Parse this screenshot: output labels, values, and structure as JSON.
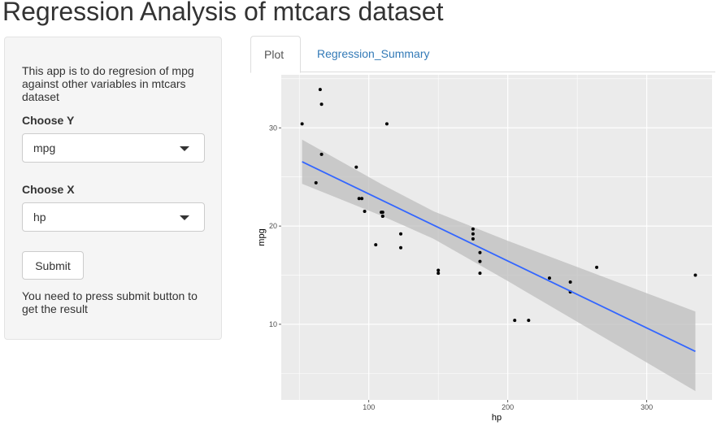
{
  "header": {
    "title": "Regression Analysis of mtcars dataset"
  },
  "sidebar": {
    "intro": "This app is to do regresion of mpg against other variables in mtcars dataset",
    "y_label": "Choose Y",
    "y_value": "mpg",
    "x_label": "Choose X",
    "x_value": "hp",
    "submit_label": "Submit",
    "note": "You need to press submit button to get the result"
  },
  "tabs": [
    {
      "label": "Plot",
      "active": true
    },
    {
      "label": "Regression_Summary",
      "active": false
    }
  ],
  "colors": {
    "panel": "#ebebeb",
    "grid": "#ffffff",
    "line": "#3366ff",
    "band": "#bdbdbd",
    "link": "#337ab7"
  },
  "chart_data": {
    "type": "scatter",
    "xlabel": "hp",
    "ylabel": "mpg",
    "xlim": [
      37,
      347
    ],
    "ylim": [
      2.3,
      35.4
    ],
    "xticks": [
      100,
      200,
      300
    ],
    "yticks": [
      10,
      20,
      30
    ],
    "x": [
      110,
      110,
      93,
      110,
      175,
      105,
      245,
      62,
      95,
      123,
      123,
      180,
      180,
      180,
      205,
      215,
      230,
      66,
      52,
      65,
      97,
      150,
      150,
      245,
      175,
      66,
      91,
      113,
      264,
      175,
      335,
      109
    ],
    "y": [
      21.0,
      21.0,
      22.8,
      21.4,
      18.7,
      18.1,
      14.3,
      24.4,
      22.8,
      19.2,
      17.8,
      16.4,
      17.3,
      15.2,
      10.4,
      10.4,
      14.7,
      32.4,
      30.4,
      33.9,
      21.5,
      15.5,
      15.2,
      13.3,
      19.2,
      27.3,
      26.0,
      30.4,
      15.8,
      19.7,
      15.0,
      21.4
    ],
    "fit": {
      "method": "lm",
      "x": [
        52,
        110,
        146.7,
        200,
        335
      ],
      "y": [
        26.55,
        22.59,
        20.09,
        16.45,
        7.24
      ],
      "lower": [
        24.3,
        21.0,
        18.7,
        14.4,
        3.2
      ],
      "upper": [
        28.8,
        24.2,
        21.5,
        18.5,
        11.3
      ]
    }
  }
}
